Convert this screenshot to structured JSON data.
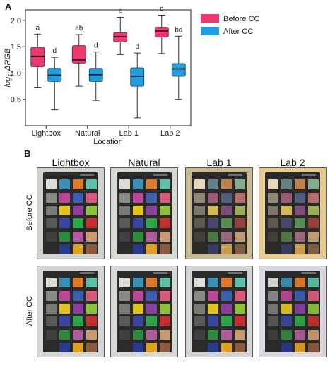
{
  "chart_data": {
    "type": "box",
    "panel_label": "A",
    "ylabel_base": "log",
    "ylabel_sub": "10",
    "ylabel_rest": "ΔRGB",
    "xlabel": "Location",
    "ylim": [
      0.0,
      2.2
    ],
    "yticks": [
      "0.5",
      "1.0",
      "1.5",
      "2.0"
    ],
    "ytick_values": [
      0.5,
      1.0,
      1.5,
      2.0
    ],
    "categories": [
      "Lightbox",
      "Natural",
      "Lab 1",
      "Lab 2"
    ],
    "legend_position": "top-right",
    "series": [
      {
        "name": "Before CC",
        "color": "#f0386e",
        "boxes": [
          {
            "min": 0.73,
            "q1": 1.12,
            "median": 1.32,
            "q3": 1.49,
            "max": 1.74,
            "letter": "a"
          },
          {
            "min": 0.75,
            "q1": 1.19,
            "median": 1.25,
            "q3": 1.52,
            "max": 1.73,
            "letter": "ab"
          },
          {
            "min": 1.35,
            "q1": 1.59,
            "median": 1.69,
            "q3": 1.77,
            "max": 2.06,
            "letter": "c"
          },
          {
            "min": 1.37,
            "q1": 1.68,
            "median": 1.8,
            "q3": 1.87,
            "max": 2.1,
            "letter": "c"
          }
        ]
      },
      {
        "name": "After CC",
        "color": "#1f9de0",
        "boxes": [
          {
            "min": 0.3,
            "q1": 0.84,
            "median": 0.96,
            "q3": 1.09,
            "max": 1.3,
            "letter": "d"
          },
          {
            "min": 0.48,
            "q1": 0.84,
            "median": 0.97,
            "q3": 1.09,
            "max": 1.4,
            "letter": "d"
          },
          {
            "min": 0.15,
            "q1": 0.75,
            "median": 0.94,
            "q3": 1.1,
            "max": 1.38,
            "letter": "d"
          },
          {
            "min": 0.5,
            "q1": 0.94,
            "median": 1.08,
            "q3": 1.18,
            "max": 1.7,
            "letter": "bd"
          }
        ]
      }
    ]
  },
  "panel_b": {
    "label": "B",
    "columns": [
      "Lightbox",
      "Natural",
      "Lab 1",
      "Lab 2"
    ],
    "rows": [
      "Before CC",
      "After CC"
    ],
    "backgrounds": {
      "before": [
        "#cfd3cc",
        "#d6d8d2",
        "#c9b98e",
        "#e8c98e"
      ],
      "after": [
        "#d4d6d4",
        "#d6d8d4",
        "#d3d3d6",
        "#d9d6e0"
      ]
    },
    "patch_colors": [
      [
        "#dcdcd6",
        "#3b8fb4",
        "#e07b2e",
        "#5fbfa8"
      ],
      [
        "#8a8a86",
        "#b9479a",
        "#3c5fb0",
        "#d85a7a"
      ],
      [
        "#7a7a76",
        "#e2c21e",
        "#8a3f9e",
        "#8cbf3a"
      ],
      [
        "#5a5a58",
        "#3a46a0",
        "#2fa54a",
        "#c43030"
      ],
      [
        "#404040",
        "#2e8a3c",
        "#b05a9c",
        "#c99a70"
      ],
      [
        "#2c2c2c",
        "#283a8a",
        "#e0a020",
        "#8e5a3c"
      ]
    ]
  }
}
